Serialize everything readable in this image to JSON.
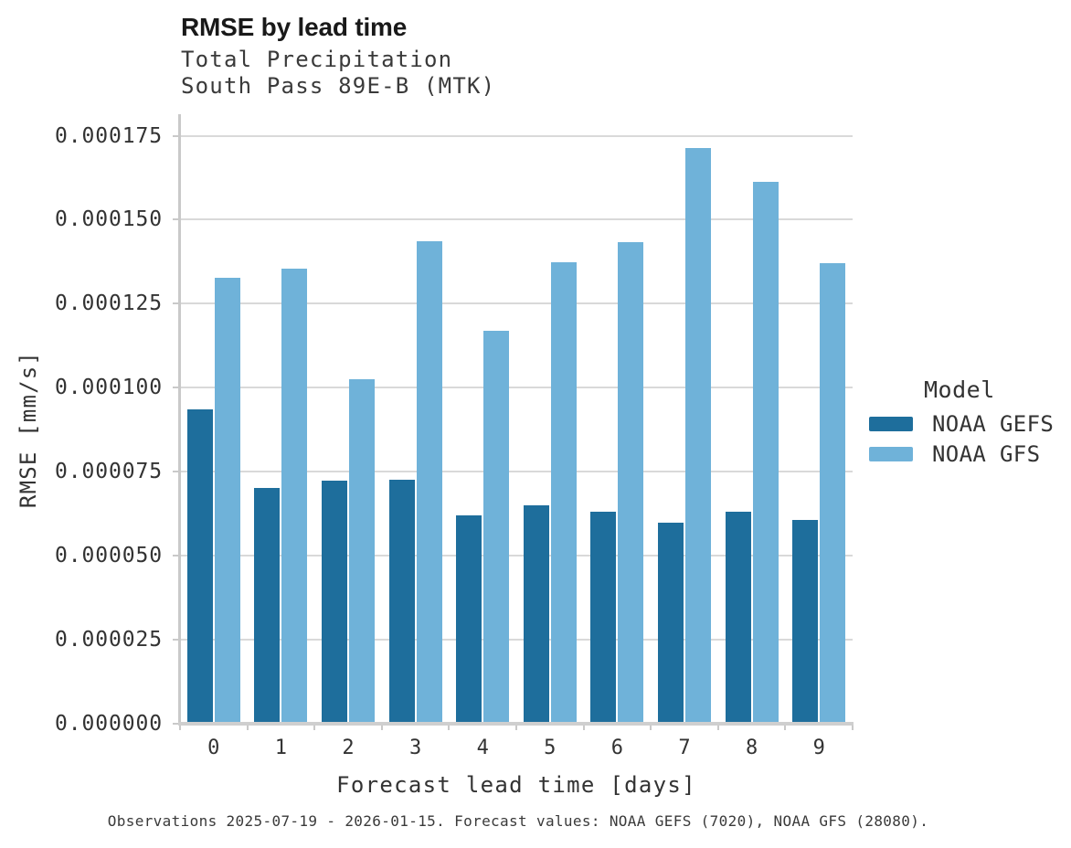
{
  "header": {
    "title": "RMSE by lead time",
    "subtitle_line1": "Total Precipitation",
    "subtitle_line2": "South Pass 89E-B (MTK)"
  },
  "legend": {
    "title": "Model",
    "position": "right"
  },
  "caption": "Observations 2025-07-19 - 2026-01-15. Forecast values: NOAA GEFS (7020), NOAA GFS (28080).",
  "colors": {
    "gefs_dark_blue": "#1e6e9c",
    "gfs_light_blue": "#6fb2d9",
    "gridline": "#d9d9d9",
    "spine": "#c9c9c9",
    "text": "#333333"
  },
  "chart_data": {
    "type": "bar",
    "title": "RMSE by lead time",
    "subtitle": [
      "Total Precipitation",
      "South Pass 89E-B (MTK)"
    ],
    "xlabel": "Forecast lead time [days]",
    "ylabel": "RMSE [mm/s]",
    "categories": [
      "0",
      "1",
      "2",
      "3",
      "4",
      "5",
      "6",
      "7",
      "8",
      "9"
    ],
    "series": [
      {
        "name": "NOAA GEFS",
        "color": "#1e6e9c",
        "values": [
          9.34e-05,
          7.01e-05,
          7.22e-05,
          7.24e-05,
          6.2e-05,
          6.48e-05,
          6.3e-05,
          5.97e-05,
          6.31e-05,
          6.05e-05
        ]
      },
      {
        "name": "NOAA GFS",
        "color": "#6fb2d9",
        "values": [
          0.0001326,
          0.0001355,
          0.0001024,
          0.0001437,
          0.0001168,
          0.0001372,
          0.0001432,
          0.0001712,
          0.0001612,
          0.0001371
        ]
      }
    ],
    "ylim": [
      0,
      0.000175
    ],
    "yticks": [
      0,
      2.5e-05,
      5e-05,
      7.5e-05,
      0.0001,
      0.000125,
      0.00015,
      0.000175
    ],
    "ytick_labels": [
      "0.000000",
      "0.000025",
      "0.000050",
      "0.000075",
      "0.000100",
      "0.000125",
      "0.000150",
      "0.000175"
    ],
    "grid": true,
    "legend_position": "right"
  }
}
